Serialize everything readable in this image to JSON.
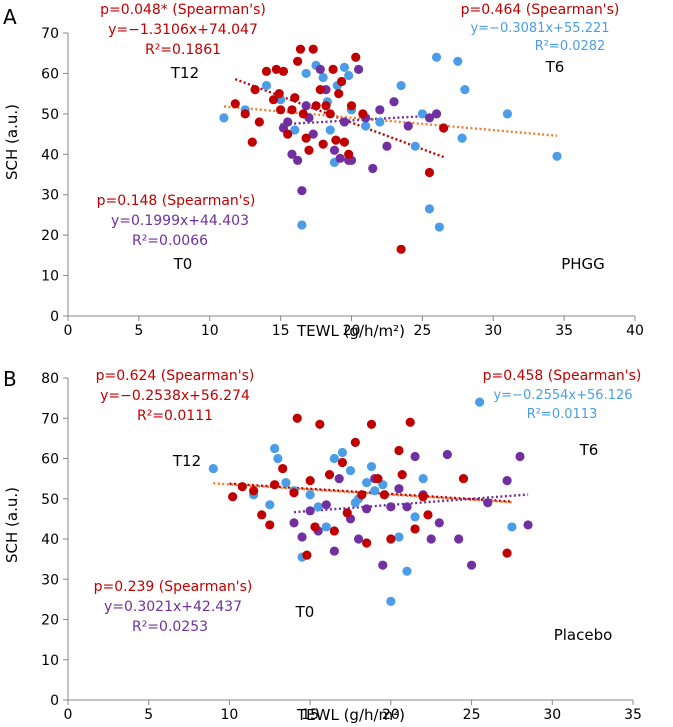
{
  "colors": {
    "t0": "#7030a0",
    "t6": "#4a9de6",
    "t12": "#c00000",
    "annot_red": "#c00000",
    "trend_orange": "#ed7d31"
  },
  "chart_data": [
    {
      "type": "scatter",
      "panel_label": "A",
      "group_label": "PHGG",
      "xlabel": "TEWL (g/h/m²)",
      "ylabel": "SCH (a.u.)",
      "xlim": [
        0,
        40
      ],
      "ylim": [
        0,
        70
      ],
      "xticks": [
        0,
        5,
        10,
        15,
        20,
        25,
        30,
        35,
        40
      ],
      "yticks": [
        0,
        10,
        20,
        30,
        40,
        50,
        60,
        70
      ],
      "annotations": {
        "t12": {
          "p": "p=0.048* (Spearman's)",
          "eq": "y=−1.3106x+74.047",
          "r2": "R²=0.1861",
          "label": "T12"
        },
        "t6": {
          "p": "p=0.464 (Spearman's)",
          "eq": "y=−0.3081x+55.221",
          "r2": "R²=0.0282",
          "label": "T6"
        },
        "t0": {
          "p": "p=0.148 (Spearman's)",
          "eq": "y=0.1999x+44.403",
          "r2": "R²=0.0066",
          "label": "T0"
        }
      },
      "trendlines": [
        {
          "name": "T12",
          "slope": -1.3106,
          "intercept": 74.047,
          "x_range": [
            11.8,
            26.5
          ]
        },
        {
          "name": "T6",
          "slope": -0.3081,
          "intercept": 55.221,
          "x_range": [
            11,
            34.5
          ]
        },
        {
          "name": "T0",
          "slope": 0.1999,
          "intercept": 44.403,
          "x_range": [
            15,
            26
          ]
        }
      ],
      "series": [
        {
          "name": "T6",
          "points": [
            [
              11,
              49
            ],
            [
              12.5,
              51
            ],
            [
              14,
              57
            ],
            [
              15,
              53.5
            ],
            [
              15.5,
              48
            ],
            [
              16,
              46
            ],
            [
              16.5,
              22.5
            ],
            [
              16.8,
              60
            ],
            [
              17.5,
              62
            ],
            [
              18,
              59
            ],
            [
              18.3,
              53
            ],
            [
              18.5,
              46
            ],
            [
              18.8,
              38
            ],
            [
              19,
              57
            ],
            [
              19.5,
              61.5
            ],
            [
              19.8,
              59.5
            ],
            [
              20,
              51
            ],
            [
              21,
              47
            ],
            [
              22,
              48
            ],
            [
              23.5,
              57
            ],
            [
              24.5,
              42
            ],
            [
              25,
              50
            ],
            [
              25.5,
              26.5
            ],
            [
              26,
              64
            ],
            [
              26.2,
              22
            ],
            [
              27.5,
              63
            ],
            [
              27.8,
              44
            ],
            [
              28,
              56
            ],
            [
              31,
              50
            ],
            [
              34.5,
              39.5
            ]
          ]
        },
        {
          "name": "T0",
          "points": [
            [
              15.2,
              46.5
            ],
            [
              15.5,
              48
            ],
            [
              15.8,
              40
            ],
            [
              16.2,
              38.5
            ],
            [
              16.5,
              31
            ],
            [
              16.8,
              52
            ],
            [
              17,
              49
            ],
            [
              17.3,
              45
            ],
            [
              17.8,
              61
            ],
            [
              18.2,
              56
            ],
            [
              18.8,
              41
            ],
            [
              19.2,
              39
            ],
            [
              19.5,
              48
            ],
            [
              19.8,
              38.5
            ],
            [
              20,
              38.5
            ],
            [
              20.5,
              61
            ],
            [
              21,
              49
            ],
            [
              21.5,
              36.5
            ],
            [
              22,
              51
            ],
            [
              22.5,
              42
            ],
            [
              23,
              53
            ],
            [
              24,
              47
            ],
            [
              25.5,
              49
            ],
            [
              26,
              50
            ]
          ]
        },
        {
          "name": "T12",
          "points": [
            [
              11.8,
              52.5
            ],
            [
              12.5,
              50
            ],
            [
              13,
              43
            ],
            [
              13.2,
              56
            ],
            [
              13.5,
              48
            ],
            [
              14,
              60.5
            ],
            [
              14.5,
              53.5
            ],
            [
              14.7,
              61
            ],
            [
              14.9,
              55
            ],
            [
              15,
              51
            ],
            [
              15.2,
              60.5
            ],
            [
              15.5,
              45
            ],
            [
              15.8,
              51
            ],
            [
              16,
              54
            ],
            [
              16.2,
              63
            ],
            [
              16.4,
              66
            ],
            [
              16.6,
              50
            ],
            [
              16.8,
              44
            ],
            [
              17,
              41
            ],
            [
              17.3,
              66
            ],
            [
              17.5,
              52
            ],
            [
              17.8,
              56
            ],
            [
              18,
              42.5
            ],
            [
              18.2,
              52
            ],
            [
              18.5,
              50
            ],
            [
              18.7,
              61
            ],
            [
              18.9,
              43.5
            ],
            [
              19.1,
              55
            ],
            [
              19.3,
              58
            ],
            [
              19.5,
              43
            ],
            [
              19.8,
              40
            ],
            [
              20,
              52
            ],
            [
              20.3,
              64
            ],
            [
              20.8,
              50
            ],
            [
              23.5,
              16.5
            ],
            [
              25.5,
              35.5
            ],
            [
              26.5,
              46.5
            ]
          ]
        }
      ]
    },
    {
      "type": "scatter",
      "panel_label": "B",
      "group_label": "Placebo",
      "xlabel": "TEWL (g/h/m²)",
      "ylabel": "SCH (a.u.)",
      "xlim": [
        0,
        35
      ],
      "ylim": [
        0,
        80
      ],
      "xticks": [
        0,
        5,
        10,
        15,
        20,
        25,
        30,
        35
      ],
      "yticks": [
        0,
        10,
        20,
        30,
        40,
        50,
        60,
        70,
        80
      ],
      "annotations": {
        "t12": {
          "p": "p=0.624 (Spearman's)",
          "eq": "y=−0.2538x+56.274",
          "r2": "R²=0.0111",
          "label": "T12"
        },
        "t6": {
          "p": "p=0.458 (Spearman's)",
          "eq": "y=−0.2554x+56.126",
          "r2": "R²=0.0113",
          "label": "T6"
        },
        "t0": {
          "p": "p=0.239 (Spearman's)",
          "eq": "y=0.3021x+42.437",
          "r2": "R²=0.0253",
          "label": "T0"
        }
      },
      "trendlines": [
        {
          "name": "T6",
          "slope": -0.2554,
          "intercept": 56.126,
          "x_range": [
            9,
            27.5
          ]
        },
        {
          "name": "T12",
          "slope": -0.2538,
          "intercept": 56.274,
          "x_range": [
            10,
            27.5
          ]
        },
        {
          "name": "T0",
          "slope": 0.3021,
          "intercept": 42.437,
          "x_range": [
            14,
            28.5
          ]
        }
      ],
      "series": [
        {
          "name": "T6",
          "points": [
            [
              9,
              57.5
            ],
            [
              11.5,
              51
            ],
            [
              12.5,
              48.5
            ],
            [
              12.8,
              62.5
            ],
            [
              13,
              60
            ],
            [
              13.5,
              54
            ],
            [
              14,
              52
            ],
            [
              14.5,
              35.5
            ],
            [
              15,
              51
            ],
            [
              15.5,
              48
            ],
            [
              16,
              43
            ],
            [
              16.5,
              60
            ],
            [
              17,
              61.5
            ],
            [
              17.5,
              57
            ],
            [
              17.8,
              49
            ],
            [
              18,
              50
            ],
            [
              18.5,
              54
            ],
            [
              18.8,
              58
            ],
            [
              19,
              52
            ],
            [
              19.5,
              53.5
            ],
            [
              20,
              24.5
            ],
            [
              20.5,
              40.5
            ],
            [
              21,
              32
            ],
            [
              21.5,
              45.5
            ],
            [
              22,
              55
            ],
            [
              25.5,
              74
            ],
            [
              27.5,
              43
            ]
          ]
        },
        {
          "name": "T0",
          "points": [
            [
              14,
              44
            ],
            [
              14.5,
              40.5
            ],
            [
              15,
              47
            ],
            [
              15.5,
              42
            ],
            [
              16,
              48.5
            ],
            [
              16.5,
              37
            ],
            [
              16.8,
              55
            ],
            [
              17.5,
              45
            ],
            [
              18,
              40
            ],
            [
              18.5,
              47.5
            ],
            [
              19,
              55
            ],
            [
              19.5,
              33.5
            ],
            [
              20,
              48
            ],
            [
              20.5,
              52.5
            ],
            [
              21,
              48
            ],
            [
              21.5,
              60.5
            ],
            [
              22,
              51
            ],
            [
              22.5,
              40
            ],
            [
              23,
              44
            ],
            [
              23.5,
              61
            ],
            [
              24.2,
              40
            ],
            [
              25,
              33.5
            ],
            [
              26,
              49
            ],
            [
              27.2,
              54.5
            ],
            [
              28,
              60.5
            ],
            [
              28.5,
              43.5
            ]
          ]
        },
        {
          "name": "T12",
          "points": [
            [
              10.2,
              50.5
            ],
            [
              10.8,
              53
            ],
            [
              11.5,
              52
            ],
            [
              12,
              46
            ],
            [
              12.5,
              43.5
            ],
            [
              12.8,
              53.5
            ],
            [
              13.3,
              57.5
            ],
            [
              14,
              51.5
            ],
            [
              14.2,
              70
            ],
            [
              14.8,
              36
            ],
            [
              15,
              54.5
            ],
            [
              15.3,
              43
            ],
            [
              15.6,
              68.5
            ],
            [
              16.2,
              56
            ],
            [
              16.5,
              42
            ],
            [
              17,
              59
            ],
            [
              17.3,
              46.5
            ],
            [
              17.8,
              64
            ],
            [
              18.2,
              51
            ],
            [
              18.5,
              39
            ],
            [
              18.8,
              68.5
            ],
            [
              19.2,
              55
            ],
            [
              19.6,
              51
            ],
            [
              20,
              40
            ],
            [
              20.5,
              62
            ],
            [
              20.7,
              56
            ],
            [
              21.2,
              69
            ],
            [
              21.5,
              42.5
            ],
            [
              22,
              50.5
            ],
            [
              22.3,
              46
            ],
            [
              24.5,
              55
            ],
            [
              27.2,
              36.5
            ]
          ]
        }
      ]
    }
  ]
}
